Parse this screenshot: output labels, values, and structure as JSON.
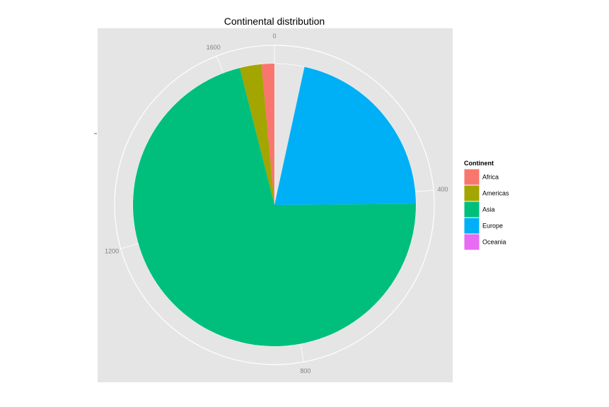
{
  "chart_data": {
    "type": "pie",
    "title": "Continental distribution",
    "theta_ticks": [
      "0",
      "400",
      "800",
      "1200",
      "1600"
    ],
    "theta_range": [
      0,
      1700
    ],
    "categories": [
      "Africa",
      "Americas",
      "Asia",
      "Europe",
      "Oceania"
    ],
    "values": [
      25,
      42,
      1210,
      365,
      0
    ],
    "colors": {
      "Africa": "#F8766D",
      "Americas": "#A3A500",
      "Asia": "#00BF7D",
      "Europe": "#00B0F6",
      "Oceania": "#E76BF3"
    },
    "legend_title": "Continent",
    "legend_position": "right",
    "panel_background": "#E5E5E5",
    "grid": true
  }
}
